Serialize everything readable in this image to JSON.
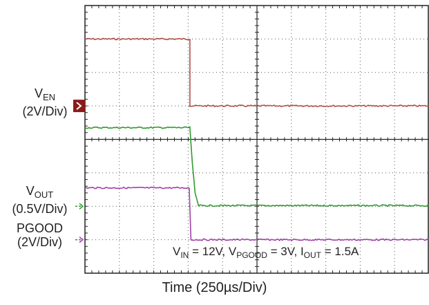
{
  "chart_data": {
    "type": "line",
    "xlabel": "Time (250µs/Div)",
    "x_divisions": 10,
    "y_divisions": 8,
    "grid": true,
    "channels": [
      {
        "name": "EN",
        "label_main": "V",
        "label_sub": "EN",
        "scale": "(2V/Div)",
        "color": "#b0504a",
        "marker_color": "#8b1a1a",
        "marker_glyph": ">",
        "marker_div": 5.0,
        "unit_per_div": 2,
        "points": [
          [
            0,
            7.0
          ],
          [
            3.05,
            7.0
          ],
          [
            3.05,
            5.0
          ],
          [
            10,
            5.0
          ]
        ]
      },
      {
        "name": "OUT",
        "label_main": "V",
        "label_sub": "OUT",
        "scale": "(0.5V/Div)",
        "color": "#2e9a2e",
        "marker_color": "#2e9a2e",
        "marker_glyph": "->",
        "marker_div": 2.0,
        "unit_per_div": 0.5,
        "points": [
          [
            0,
            4.35
          ],
          [
            3.05,
            4.35
          ],
          [
            3.12,
            3.3
          ],
          [
            3.2,
            2.4
          ],
          [
            3.3,
            2.02
          ],
          [
            10,
            2.02
          ]
        ]
      },
      {
        "name": "PGOOD",
        "label_main": "PGOOD",
        "label_sub": "",
        "scale": "(2V/Div)",
        "color": "#a040a8",
        "marker_color": "#a040a8",
        "marker_glyph": "->",
        "marker_div": 1.0,
        "unit_per_div": 2,
        "points": [
          [
            0,
            2.55
          ],
          [
            3.03,
            2.55
          ],
          [
            3.08,
            1.0
          ],
          [
            10,
            1.0
          ]
        ]
      }
    ],
    "annotation": {
      "vin_main": "V",
      "vin_sub": "IN",
      "vin_val": " = 12V, ",
      "vpg_main": "V",
      "vpg_sub": "PGOOD",
      "vpg_val": " = 3V, ",
      "iout_main": "I",
      "iout_sub": "OUT",
      "iout_val": " = 1.5A"
    }
  }
}
